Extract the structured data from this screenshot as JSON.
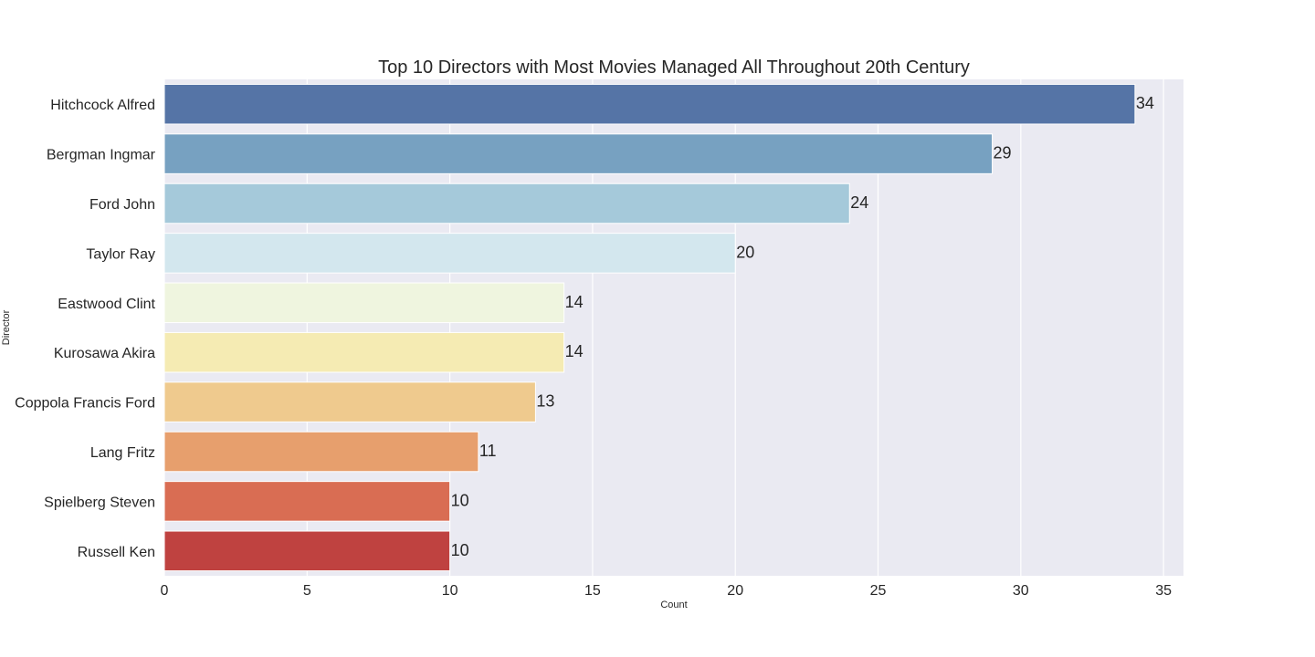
{
  "chart_data": {
    "type": "bar",
    "orientation": "horizontal",
    "title": "Top 10 Directors with Most Movies Managed All Throughout 20th Century",
    "xlabel": "Count",
    "ylabel": "Director",
    "xlim": [
      0,
      35.7
    ],
    "xticks": [
      "0",
      "5",
      "10",
      "15",
      "20",
      "25",
      "30",
      "35"
    ],
    "categories": [
      "Hitchcock Alfred",
      "Bergman Ingmar",
      "Ford John",
      "Taylor Ray",
      "Eastwood Clint",
      "Kurosawa Akira",
      "Coppola Francis Ford",
      "Lang Fritz",
      "Spielberg Steven",
      "Russell Ken"
    ],
    "values": [
      34,
      29,
      24,
      20,
      14,
      14,
      13,
      11,
      10,
      10
    ],
    "colors": [
      "#5574a6",
      "#77a1c1",
      "#a5c9da",
      "#d3e7ee",
      "#eff5df",
      "#f5ebb3",
      "#efca8e",
      "#e79f6d",
      "#d96d53",
      "#bf4240"
    ],
    "grid": true,
    "legend": "none",
    "background": "#eaeaf2"
  }
}
